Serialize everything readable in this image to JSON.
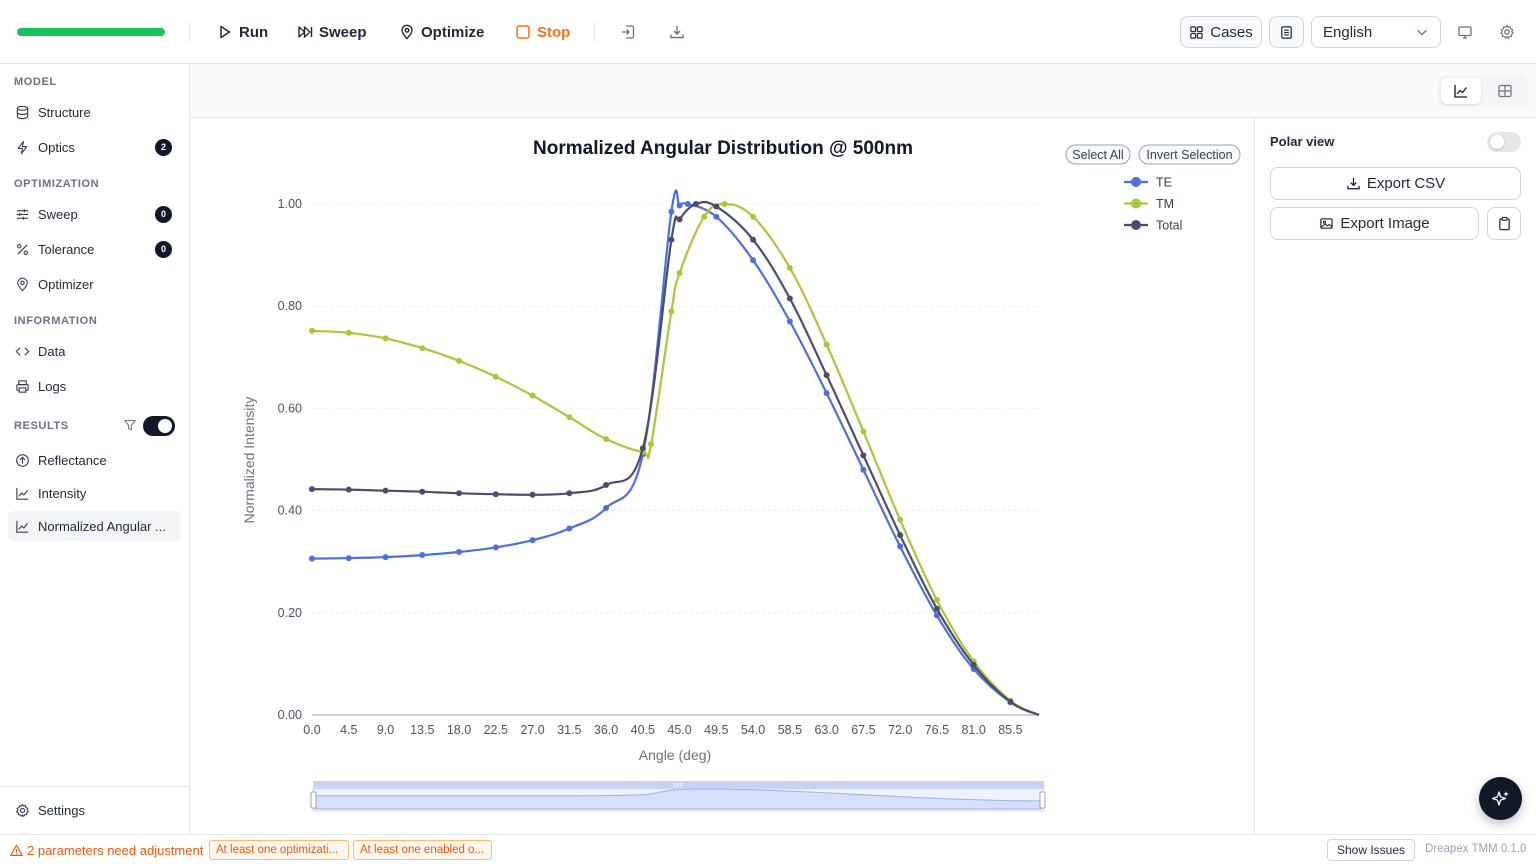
{
  "toolbar": {
    "progress": 1.0,
    "run_label": "Run",
    "sweep_label": "Sweep",
    "optimize_label": "Optimize",
    "stop_label": "Stop",
    "cases_label": "Cases",
    "language": "English"
  },
  "sidebar": {
    "model_section": "MODEL",
    "structure": "Structure",
    "optics": "Optics",
    "optics_badge": "2",
    "optimization_section": "OPTIMIZATION",
    "sweep": "Sweep",
    "sweep_badge": "0",
    "tolerance": "Tolerance",
    "tolerance_badge": "0",
    "optimizer": "Optimizer",
    "information_section": "INFORMATION",
    "data": "Data",
    "logs": "Logs",
    "results_section": "RESULTS",
    "results_toggle_on": true,
    "reflectance": "Reflectance",
    "intensity": "Intensity",
    "normalized": "Normalized Angular ...",
    "settings": "Settings"
  },
  "right_panel": {
    "polar_view": "Polar view",
    "polar_on": false,
    "export_csv": "Export CSV",
    "export_image": "Export Image"
  },
  "status": {
    "warning": "2 parameters need adjustment",
    "chip1": "At least one optimizati...",
    "chip2": "At least one enabled o...",
    "show_issues": "Show Issues",
    "version": "Dreapex TMM 0.1.0"
  },
  "legend_buttons": {
    "select_all": "Select All",
    "invert_selection": "Invert Selection"
  },
  "chart_data": {
    "type": "line",
    "title": "Normalized Angular Distribution @ 500nm",
    "xlabel": "Angle (deg)",
    "ylabel": "Normalized Intensity",
    "x_ticks": [
      "0.0",
      "4.5",
      "9.0",
      "13.5",
      "18.0",
      "22.5",
      "27.0",
      "31.5",
      "36.0",
      "40.5",
      "45.0",
      "49.5",
      "54.0",
      "58.5",
      "63.0",
      "67.5",
      "72.0",
      "76.5",
      "81.0",
      "85.5"
    ],
    "y_ticks": [
      "0.00",
      "0.20",
      "0.40",
      "0.60",
      "0.80",
      "1.00"
    ],
    "xlim": [
      0,
      89
    ],
    "ylim": [
      0,
      1
    ],
    "legend_position": "top-right",
    "series": [
      {
        "name": "TE",
        "color": "#4f6fd9",
        "x": [
          0,
          4.5,
          9,
          13.5,
          18,
          22.5,
          27,
          31.5,
          36,
          40.5,
          44,
          45,
          46,
          49.5,
          54,
          58.5,
          63,
          67.5,
          72,
          76.5,
          81,
          85.5,
          89
        ],
        "y": [
          0.306,
          0.307,
          0.309,
          0.313,
          0.319,
          0.328,
          0.342,
          0.365,
          0.405,
          0.51,
          0.985,
          0.997,
          1.0,
          0.975,
          0.89,
          0.77,
          0.63,
          0.48,
          0.33,
          0.195,
          0.09,
          0.025,
          0.0
        ]
      },
      {
        "name": "TM",
        "color": "#a4c93a",
        "x": [
          0,
          4.5,
          9,
          13.5,
          18,
          22.5,
          27,
          31.5,
          36,
          40.5,
          41.5,
          44,
          45,
          48,
          50.5,
          54,
          58.5,
          63,
          67.5,
          72,
          76.5,
          81,
          85.5,
          89
        ],
        "y": [
          0.752,
          0.748,
          0.737,
          0.718,
          0.693,
          0.662,
          0.625,
          0.583,
          0.54,
          0.515,
          0.53,
          0.79,
          0.865,
          0.975,
          1.0,
          0.975,
          0.875,
          0.725,
          0.555,
          0.382,
          0.225,
          0.105,
          0.028,
          0.0
        ]
      },
      {
        "name": "Total",
        "color": "#4a4e6b",
        "x": [
          0,
          4.5,
          9,
          13.5,
          18,
          22.5,
          27,
          31.5,
          36,
          40.5,
          44,
          45,
          47,
          49.5,
          54,
          58.5,
          63,
          67.5,
          72,
          76.5,
          81,
          85.5,
          89
        ],
        "y": [
          0.442,
          0.441,
          0.439,
          0.437,
          0.434,
          0.432,
          0.431,
          0.434,
          0.45,
          0.522,
          0.93,
          0.97,
          1.0,
          0.995,
          0.93,
          0.815,
          0.665,
          0.508,
          0.352,
          0.208,
          0.098,
          0.026,
          0.0
        ]
      }
    ]
  }
}
